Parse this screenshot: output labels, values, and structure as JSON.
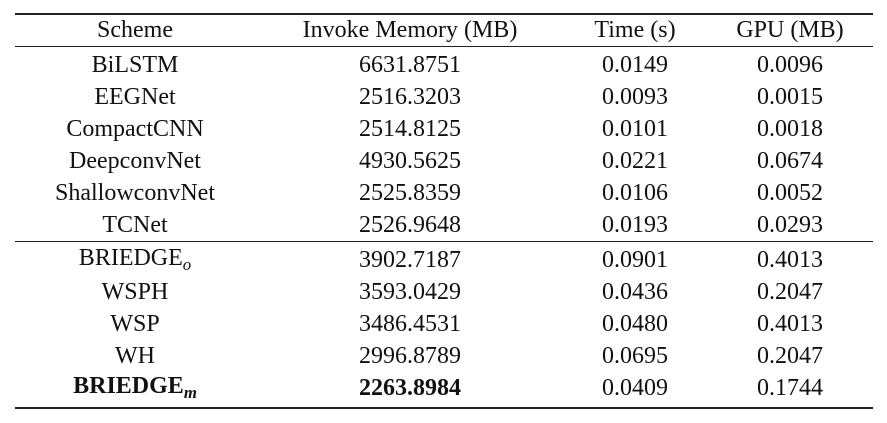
{
  "table": {
    "header": [
      "Scheme",
      "Invoke Memory (MB)",
      "Time (s)",
      "GPU (MB)"
    ],
    "groups": [
      {
        "rows": [
          {
            "scheme": "BiLSTM",
            "cells": [
              "6631.8751",
              "0.0149",
              "0.0096"
            ]
          },
          {
            "scheme": "EEGNet",
            "cells": [
              "2516.3203",
              "0.0093",
              "0.0015"
            ]
          },
          {
            "scheme": "CompactCNN",
            "cells": [
              "2514.8125",
              "0.0101",
              "0.0018"
            ]
          },
          {
            "scheme": "DeepconvNet",
            "cells": [
              "4930.5625",
              "0.0221",
              "0.0674"
            ]
          },
          {
            "scheme": "ShallowconvNet",
            "cells": [
              "2525.8359",
              "0.0106",
              "0.0052"
            ]
          },
          {
            "scheme": "TCNet",
            "cells": [
              "2526.9648",
              "0.0193",
              "0.0293"
            ]
          }
        ]
      },
      {
        "rows": [
          {
            "scheme": "BRIEDGE",
            "scheme_sub": "o",
            "cells": [
              "3902.7187",
              "0.0901",
              "0.4013"
            ]
          },
          {
            "scheme": "WSPH",
            "cells": [
              "3593.0429",
              "0.0436",
              "0.2047"
            ]
          },
          {
            "scheme": "WSP",
            "cells": [
              "3486.4531",
              "0.0480",
              "0.4013"
            ]
          },
          {
            "scheme": "WH",
            "cells": [
              "2996.8789",
              "0.0695",
              "0.2047"
            ]
          },
          {
            "scheme": "BRIEDGE",
            "scheme_sub": "m",
            "bold": true,
            "cells": [
              "2263.8984",
              "0.0409",
              "0.1744"
            ]
          }
        ]
      }
    ]
  }
}
